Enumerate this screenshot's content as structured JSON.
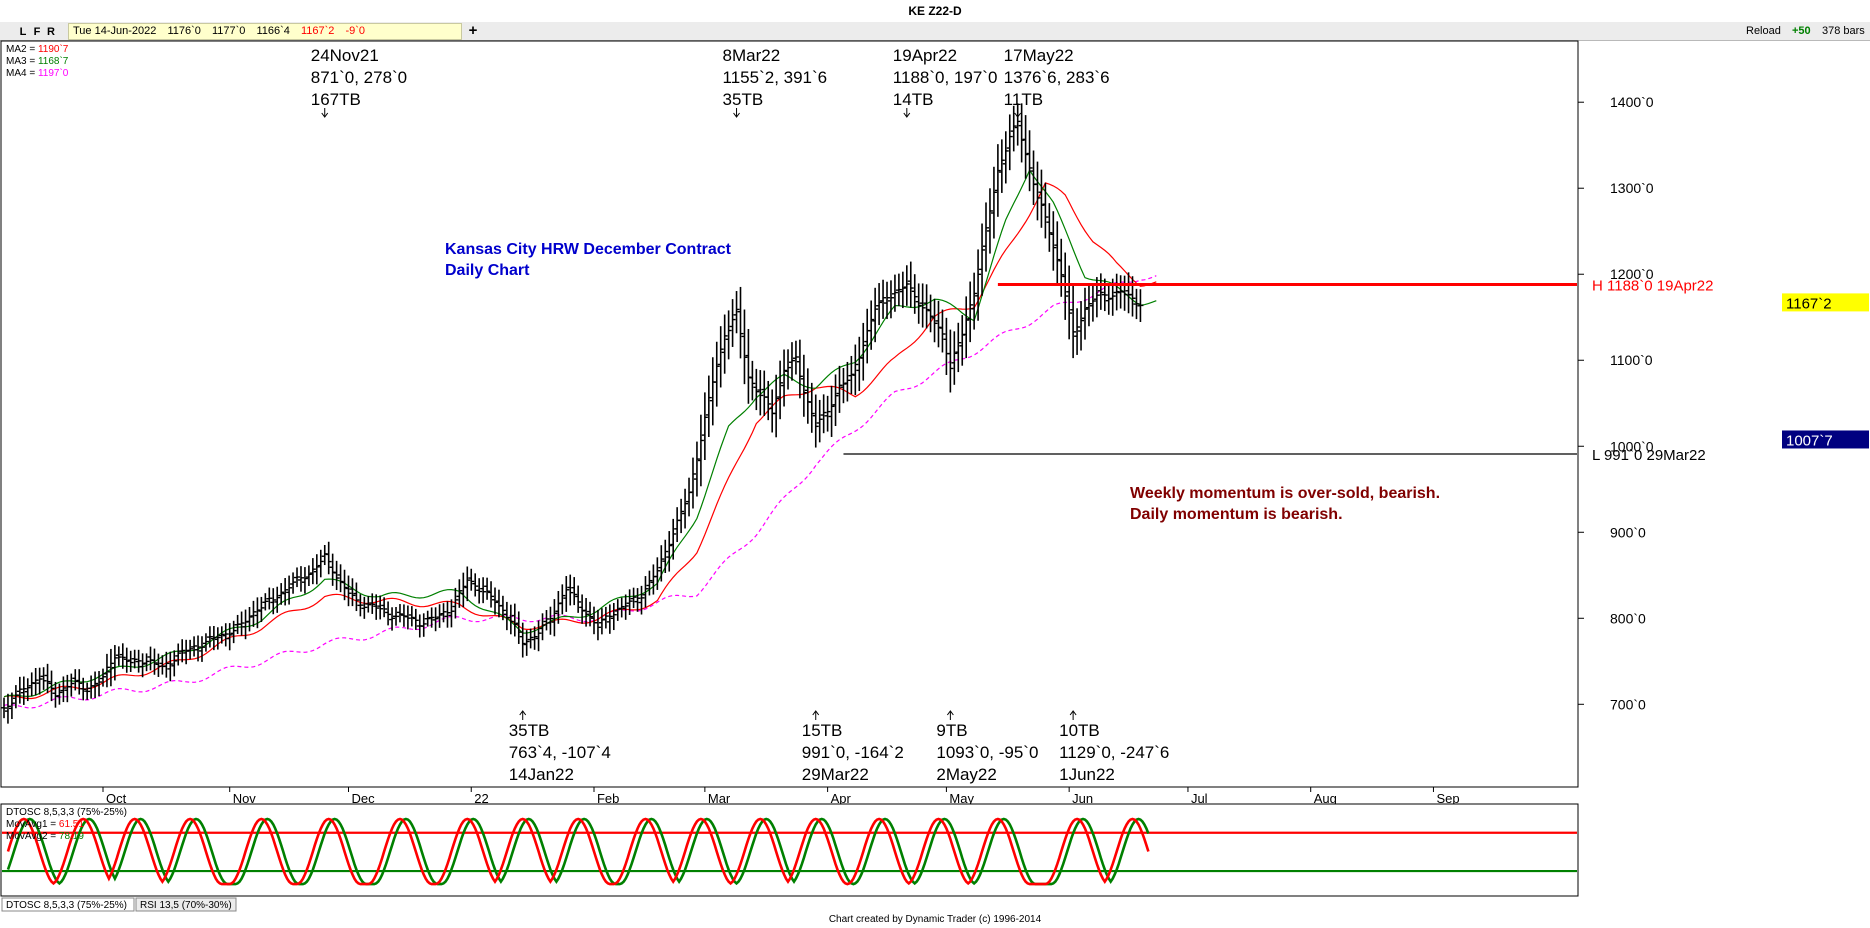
{
  "window": {
    "title": "KE Z22-D"
  },
  "toolbar": {
    "buttons": [
      "L",
      "F",
      "R"
    ],
    "quote": {
      "date": "Tue 14-Jun-2022",
      "open": "1176`0",
      "high": "1177`0",
      "low": "1166`4",
      "close": "1167`2",
      "change": "-9`0"
    },
    "plus": "+",
    "reload": "Reload",
    "zoom": "+50",
    "bar_count": "378 bars"
  },
  "colors": {
    "ma2": "#ff0000",
    "ma3": "#008000",
    "ma4": "#ff00ff",
    "bars": "#000000",
    "current_price_bg": "#ffff00",
    "marker_bg": "#000080",
    "annotation_blue": "#0000cc",
    "annotation_brown": "#800000"
  },
  "footer": "Chart created by Dynamic Trader  (c) 1996-2014",
  "chart_data": [
    {
      "type": "line",
      "title": "",
      "ma_legend": [
        {
          "label": "MA2 =",
          "value": "1190`7",
          "color": "#ff0000"
        },
        {
          "label": "MA3 =",
          "value": "1168`7",
          "color": "#008000"
        },
        {
          "label": "MA4 =",
          "value": "1197`0",
          "color": "#ff00ff"
        }
      ],
      "y_axis": {
        "ticks": [
          "1400`0",
          "1300`0",
          "1200`0",
          "1100`0",
          "1000`0",
          "900`0",
          "800`0",
          "700`0"
        ],
        "tick_values": [
          1400,
          1300,
          1200,
          1100,
          1000,
          900,
          800,
          700
        ],
        "range": [
          605,
          1470
        ]
      },
      "x_axis": {
        "labels": [
          "Oct",
          "Nov",
          "Dec",
          "22",
          "Feb",
          "Mar",
          "Apr",
          "May",
          "Jun",
          "Jul",
          "Aug",
          "Sep"
        ],
        "label_days": [
          0,
          32,
          62,
          93,
          124,
          152,
          183,
          213,
          244,
          274,
          305,
          336
        ],
        "range_days": [
          -25,
          372
        ],
        "start": "Sep 2021"
      },
      "price_markers": [
        {
          "label": "1167`2",
          "value": 1167.25,
          "style": "current"
        },
        {
          "label": "1007`7",
          "value": 1007.875,
          "style": "dark"
        }
      ],
      "levels": [
        {
          "label": "H 1188`0 19Apr22",
          "value": 1188,
          "color": "#ff0000",
          "from_day": 226
        },
        {
          "label": "L 991`0 29Mar22",
          "value": 991,
          "color": "#000000",
          "from_day": 187
        }
      ],
      "swing_labels": [
        {
          "lines": [
            "24Nov21",
            "871`0, 278`0",
            "167TB"
          ],
          "position": "top",
          "day": 56
        },
        {
          "lines": [
            "8Mar22",
            "1155`2, 391`6",
            "35TB"
          ],
          "position": "top",
          "day": 160
        },
        {
          "lines": [
            "19Apr22",
            "1188`0, 197`0",
            "14TB"
          ],
          "position": "top",
          "day": 203
        },
        {
          "lines": [
            "17May22",
            "1376`6, 283`6",
            "11TB"
          ],
          "position": "top",
          "day": 231
        },
        {
          "lines": [
            "35TB",
            "763`4, -107`4",
            "14Jan22"
          ],
          "position": "bottom",
          "day": 106
        },
        {
          "lines": [
            "15TB",
            "991`0, -164`2",
            "29Mar22"
          ],
          "position": "bottom",
          "day": 180
        },
        {
          "lines": [
            "9TB",
            "1093`0, -95`0",
            "2May22"
          ],
          "position": "bottom",
          "day": 214
        },
        {
          "lines": [
            "10TB",
            "1129`0, -247`6",
            "1Jun22"
          ],
          "position": "bottom",
          "day": 245
        }
      ],
      "annotations": [
        {
          "lines": [
            "Kansas City HRW December Contract",
            "Daily Chart"
          ],
          "color": "#0000cc"
        },
        {
          "lines": [
            "Weekly momentum is over-sold, bearish.",
            "Daily momentum is bearish."
          ],
          "color": "#800000"
        }
      ],
      "price_path": [
        [
          -25,
          695
        ],
        [
          -20,
          718
        ],
        [
          -16,
          732
        ],
        [
          -12,
          712
        ],
        [
          -8,
          725
        ],
        [
          -4,
          718
        ],
        [
          0,
          730
        ],
        [
          3,
          758
        ],
        [
          7,
          748
        ],
        [
          11,
          752
        ],
        [
          15,
          742
        ],
        [
          19,
          758
        ],
        [
          23,
          766
        ],
        [
          27,
          775
        ],
        [
          31,
          782
        ],
        [
          35,
          792
        ],
        [
          39,
          812
        ],
        [
          43,
          822
        ],
        [
          47,
          838
        ],
        [
          52,
          852
        ],
        [
          56,
          871
        ],
        [
          60,
          842
        ],
        [
          64,
          818
        ],
        [
          68,
          815
        ],
        [
          72,
          805
        ],
        [
          76,
          802
        ],
        [
          80,
          795
        ],
        [
          84,
          800
        ],
        [
          88,
          812
        ],
        [
          92,
          845
        ],
        [
          95,
          835
        ],
        [
          99,
          820
        ],
        [
          103,
          798
        ],
        [
          106,
          772
        ],
        [
          109,
          780
        ],
        [
          113,
          800
        ],
        [
          117,
          835
        ],
        [
          121,
          812
        ],
        [
          125,
          790
        ],
        [
          128,
          805
        ],
        [
          132,
          815
        ],
        [
          136,
          828
        ],
        [
          140,
          855
        ],
        [
          144,
          900
        ],
        [
          148,
          945
        ],
        [
          151,
          1010
        ],
        [
          154,
          1075
        ],
        [
          157,
          1130
        ],
        [
          160,
          1155
        ],
        [
          163,
          1080
        ],
        [
          166,
          1060
        ],
        [
          169,
          1040
        ],
        [
          172,
          1090
        ],
        [
          175,
          1100
        ],
        [
          177,
          1065
        ],
        [
          180,
          1025
        ],
        [
          183,
          1040
        ],
        [
          186,
          1070
        ],
        [
          189,
          1080
        ],
        [
          192,
          1120
        ],
        [
          195,
          1160
        ],
        [
          198,
          1175
        ],
        [
          201,
          1180
        ],
        [
          203,
          1188
        ],
        [
          206,
          1168
        ],
        [
          209,
          1150
        ],
        [
          212,
          1130
        ],
        [
          214,
          1093
        ],
        [
          217,
          1130
        ],
        [
          220,
          1180
        ],
        [
          223,
          1250
        ],
        [
          226,
          1320
        ],
        [
          229,
          1360
        ],
        [
          231,
          1376
        ],
        [
          233,
          1340
        ],
        [
          236,
          1290
        ],
        [
          239,
          1250
        ],
        [
          242,
          1200
        ],
        [
          245,
          1129
        ],
        [
          248,
          1160
        ],
        [
          251,
          1175
        ],
        [
          254,
          1175
        ],
        [
          257,
          1180
        ],
        [
          260,
          1170
        ],
        [
          262,
          1167.25
        ]
      ],
      "ma2_path": [
        [
          -25,
          705
        ],
        [
          0,
          725
        ],
        [
          20,
          750
        ],
        [
          40,
          790
        ],
        [
          56,
          825
        ],
        [
          70,
          820
        ],
        [
          90,
          815
        ],
        [
          106,
          790
        ],
        [
          125,
          800
        ],
        [
          140,
          820
        ],
        [
          150,
          880
        ],
        [
          158,
          960
        ],
        [
          165,
          1030
        ],
        [
          172,
          1055
        ],
        [
          180,
          1070
        ],
        [
          190,
          1060
        ],
        [
          200,
          1100
        ],
        [
          210,
          1150
        ],
        [
          220,
          1165
        ],
        [
          230,
          1240
        ],
        [
          238,
          1305
        ],
        [
          243,
          1290
        ],
        [
          250,
          1240
        ],
        [
          256,
          1210
        ],
        [
          262,
          1190
        ]
      ],
      "ma3_path": [
        [
          -25,
          705
        ],
        [
          0,
          735
        ],
        [
          20,
          760
        ],
        [
          40,
          800
        ],
        [
          56,
          845
        ],
        [
          70,
          825
        ],
        [
          90,
          830
        ],
        [
          106,
          785
        ],
        [
          125,
          810
        ],
        [
          140,
          840
        ],
        [
          150,
          920
        ],
        [
          158,
          1020
        ],
        [
          165,
          1060
        ],
        [
          172,
          1080
        ],
        [
          180,
          1070
        ],
        [
          190,
          1100
        ],
        [
          200,
          1160
        ],
        [
          210,
          1170
        ],
        [
          220,
          1150
        ],
        [
          228,
          1260
        ],
        [
          234,
          1325
        ],
        [
          240,
          1280
        ],
        [
          248,
          1200
        ],
        [
          255,
          1185
        ],
        [
          262,
          1168
        ]
      ],
      "ma4_path": [
        [
          -25,
          695
        ],
        [
          20,
          725
        ],
        [
          56,
          770
        ],
        [
          90,
          800
        ],
        [
          125,
          800
        ],
        [
          150,
          830
        ],
        [
          165,
          900
        ],
        [
          180,
          980
        ],
        [
          200,
          1060
        ],
        [
          220,
          1110
        ],
        [
          240,
          1160
        ],
        [
          262,
          1197
        ]
      ]
    },
    {
      "type": "line",
      "title": "",
      "legend": [
        {
          "label": "DTOSC 8,5,3,3 (75%-25%)",
          "value": "",
          "color": "#000000"
        },
        {
          "label": "MovAvg1 =",
          "value": "61.51",
          "color": "#ff0000"
        },
        {
          "label": "MovAvg2 =",
          "value": "78.19",
          "color": "#008000"
        }
      ],
      "levels": [
        {
          "value": 75,
          "color": "#ff0000"
        },
        {
          "value": 25,
          "color": "#008000"
        }
      ],
      "y_range": [
        -5,
        110
      ],
      "series_peaks_days": [
        -20,
        -5,
        8,
        22,
        40,
        57,
        75,
        92,
        106,
        120,
        137,
        151,
        166,
        180,
        196,
        211,
        226,
        246,
        260
      ],
      "tabs": [
        "DTOSC 8,5,3,3 (75%-25%)",
        "RSI 13,5 (70%-30%)"
      ]
    }
  ]
}
